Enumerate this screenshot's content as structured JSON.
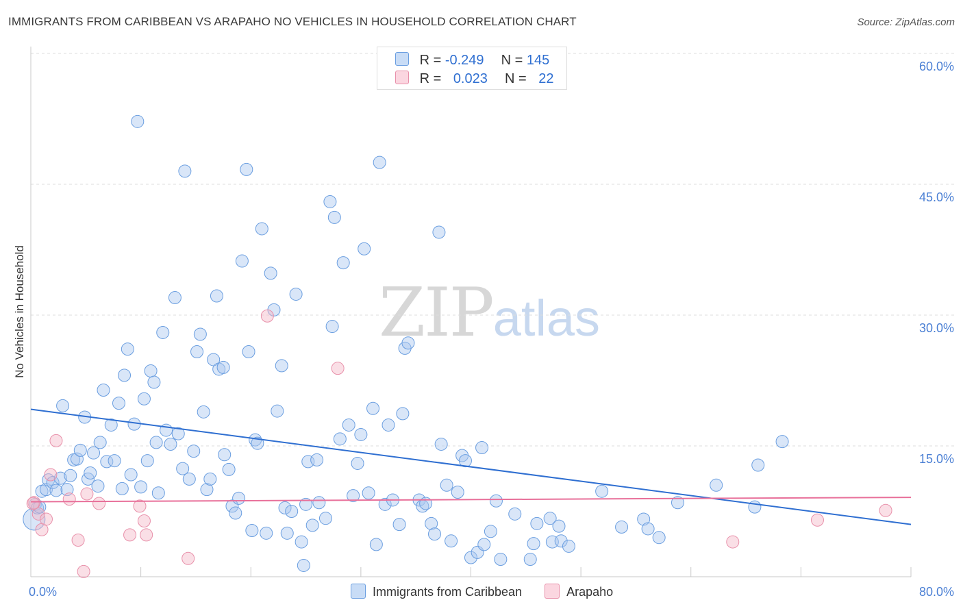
{
  "title": "IMMIGRANTS FROM CARIBBEAN VS ARAPAHO NO VEHICLES IN HOUSEHOLD CORRELATION CHART",
  "source": "Source: ZipAtlas.com",
  "watermark": {
    "zip": "ZIP",
    "atlas": "atlas"
  },
  "legend": {
    "rows": [
      {
        "r_label": "R =",
        "r_value": "-0.249",
        "n_label": "N =",
        "n_value": "145",
        "color": "#aac8f0"
      },
      {
        "r_label": "R =",
        "r_value": "0.023",
        "n_label": "N =",
        "n_value": "22",
        "color": "#f5b8c8"
      }
    ]
  },
  "bottom_legend": [
    {
      "label": "Immigrants from Caribbean",
      "color": "#aac8f0"
    },
    {
      "label": "Arapaho",
      "color": "#f5b8c8"
    }
  ],
  "chart_data": {
    "type": "scatter",
    "title": "IMMIGRANTS FROM CARIBBEAN VS ARAPAHO NO VEHICLES IN HOUSEHOLD CORRELATION CHART",
    "xlabel": "",
    "ylabel": "No Vehicles in Household",
    "xlim": [
      0,
      80
    ],
    "ylim": [
      0,
      60
    ],
    "x_tick_labels": [
      "0.0%",
      "80.0%"
    ],
    "y_ticks": [
      15,
      30,
      45,
      60
    ],
    "y_tick_labels": [
      "15.0%",
      "30.0%",
      "45.0%",
      "60.0%"
    ],
    "grid": "horizontal dashed",
    "series": [
      {
        "name": "Immigrants from Caribbean",
        "color": "#aac8f0",
        "edge": "#6a9ee0",
        "trend": {
          "x": [
            0,
            80
          ],
          "y": [
            19.2,
            6.0
          ],
          "color": "#2f6fd1"
        },
        "points": [
          [
            0.3,
            6.6
          ],
          [
            0.4,
            8.3
          ],
          [
            0.6,
            7.9
          ],
          [
            0.8,
            8.0
          ],
          [
            1.0,
            9.8
          ],
          [
            1.4,
            10.0
          ],
          [
            1.6,
            11.1
          ],
          [
            2.0,
            10.8
          ],
          [
            2.3,
            9.9
          ],
          [
            2.7,
            11.3
          ],
          [
            2.9,
            19.6
          ],
          [
            3.3,
            10.0
          ],
          [
            3.6,
            11.6
          ],
          [
            3.9,
            13.4
          ],
          [
            4.2,
            13.5
          ],
          [
            4.5,
            14.5
          ],
          [
            4.9,
            18.3
          ],
          [
            5.2,
            11.2
          ],
          [
            5.4,
            11.9
          ],
          [
            5.7,
            14.2
          ],
          [
            6.1,
            10.4
          ],
          [
            6.3,
            15.4
          ],
          [
            6.6,
            21.4
          ],
          [
            6.9,
            13.2
          ],
          [
            7.3,
            17.4
          ],
          [
            7.6,
            13.3
          ],
          [
            8.0,
            19.9
          ],
          [
            8.3,
            10.1
          ],
          [
            8.5,
            23.1
          ],
          [
            8.8,
            26.1
          ],
          [
            9.1,
            11.7
          ],
          [
            9.4,
            17.5
          ],
          [
            9.7,
            52.2
          ],
          [
            10.0,
            10.3
          ],
          [
            10.3,
            20.4
          ],
          [
            10.6,
            13.3
          ],
          [
            10.9,
            23.6
          ],
          [
            11.2,
            22.3
          ],
          [
            11.4,
            15.4
          ],
          [
            11.6,
            9.6
          ],
          [
            12.0,
            28.0
          ],
          [
            12.3,
            16.8
          ],
          [
            12.7,
            15.2
          ],
          [
            13.1,
            32.0
          ],
          [
            13.4,
            16.4
          ],
          [
            13.8,
            12.4
          ],
          [
            14.0,
            46.5
          ],
          [
            14.4,
            11.2
          ],
          [
            14.8,
            14.4
          ],
          [
            15.1,
            25.8
          ],
          [
            15.4,
            27.8
          ],
          [
            15.7,
            18.9
          ],
          [
            16.0,
            10.0
          ],
          [
            16.3,
            11.2
          ],
          [
            16.6,
            24.9
          ],
          [
            16.9,
            32.2
          ],
          [
            17.1,
            23.8
          ],
          [
            17.5,
            24.0
          ],
          [
            17.6,
            14.0
          ],
          [
            18.0,
            12.3
          ],
          [
            18.3,
            8.1
          ],
          [
            18.6,
            7.3
          ],
          [
            18.9,
            9.0
          ],
          [
            19.2,
            36.2
          ],
          [
            19.6,
            46.7
          ],
          [
            19.8,
            25.8
          ],
          [
            20.1,
            5.3
          ],
          [
            20.4,
            15.7
          ],
          [
            20.6,
            15.3
          ],
          [
            21.0,
            39.9
          ],
          [
            21.4,
            5.0
          ],
          [
            21.8,
            34.8
          ],
          [
            22.1,
            30.6
          ],
          [
            22.4,
            19.0
          ],
          [
            22.8,
            24.2
          ],
          [
            23.1,
            7.9
          ],
          [
            23.3,
            5.0
          ],
          [
            23.7,
            7.5
          ],
          [
            24.1,
            32.4
          ],
          [
            24.6,
            4.0
          ],
          [
            25.0,
            8.3
          ],
          [
            25.2,
            13.2
          ],
          [
            25.6,
            5.9
          ],
          [
            26.0,
            13.4
          ],
          [
            26.2,
            8.5
          ],
          [
            26.8,
            6.7
          ],
          [
            27.2,
            43.0
          ],
          [
            27.4,
            28.7
          ],
          [
            27.6,
            41.2
          ],
          [
            28.1,
            15.8
          ],
          [
            28.4,
            36.0
          ],
          [
            28.9,
            17.4
          ],
          [
            29.3,
            9.3
          ],
          [
            29.7,
            13.0
          ],
          [
            30.0,
            16.3
          ],
          [
            30.3,
            37.6
          ],
          [
            30.7,
            9.6
          ],
          [
            31.1,
            19.3
          ],
          [
            31.4,
            3.7
          ],
          [
            31.7,
            47.5
          ],
          [
            32.2,
            8.3
          ],
          [
            32.5,
            17.4
          ],
          [
            32.9,
            8.8
          ],
          [
            33.5,
            6.0
          ],
          [
            33.8,
            18.7
          ],
          [
            34.0,
            26.2
          ],
          [
            34.3,
            26.8
          ],
          [
            35.3,
            8.8
          ],
          [
            35.6,
            8.1
          ],
          [
            35.9,
            8.4
          ],
          [
            36.4,
            6.1
          ],
          [
            36.7,
            4.9
          ],
          [
            37.1,
            39.5
          ],
          [
            37.3,
            15.2
          ],
          [
            37.8,
            10.5
          ],
          [
            38.2,
            4.1
          ],
          [
            38.8,
            9.7
          ],
          [
            39.2,
            13.9
          ],
          [
            39.5,
            13.3
          ],
          [
            40.0,
            2.2
          ],
          [
            40.6,
            2.8
          ],
          [
            41.0,
            14.8
          ],
          [
            41.2,
            3.7
          ],
          [
            41.8,
            5.2
          ],
          [
            42.3,
            8.7
          ],
          [
            42.7,
            2.0
          ],
          [
            44.0,
            7.2
          ],
          [
            45.4,
            2.0
          ],
          [
            45.7,
            3.8
          ],
          [
            46.0,
            6.1
          ],
          [
            47.2,
            6.7
          ],
          [
            47.4,
            4.0
          ],
          [
            48.0,
            5.8
          ],
          [
            48.2,
            4.1
          ],
          [
            48.9,
            3.5
          ],
          [
            51.9,
            9.8
          ],
          [
            53.7,
            5.7
          ],
          [
            55.7,
            6.6
          ],
          [
            56.1,
            5.5
          ],
          [
            57.1,
            4.5
          ],
          [
            58.8,
            8.5
          ],
          [
            62.3,
            10.5
          ],
          [
            65.8,
            8.0
          ],
          [
            66.1,
            12.8
          ],
          [
            68.3,
            15.5
          ],
          [
            24.8,
            1.3
          ]
        ]
      },
      {
        "name": "Arapaho",
        "color": "#f5b8c8",
        "edge": "#e890aa",
        "trend": {
          "x": [
            0,
            80
          ],
          "y": [
            8.6,
            9.1
          ],
          "color": "#e8709a"
        },
        "points": [
          [
            0.3,
            8.5
          ],
          [
            0.7,
            7.2
          ],
          [
            1.0,
            5.4
          ],
          [
            1.4,
            6.6
          ],
          [
            1.8,
            11.7
          ],
          [
            2.3,
            15.6
          ],
          [
            3.5,
            8.9
          ],
          [
            4.3,
            4.2
          ],
          [
            4.8,
            0.6
          ],
          [
            5.1,
            9.5
          ],
          [
            6.2,
            8.4
          ],
          [
            9.0,
            4.8
          ],
          [
            9.9,
            8.1
          ],
          [
            10.3,
            6.4
          ],
          [
            10.5,
            4.8
          ],
          [
            14.3,
            2.1
          ],
          [
            21.5,
            29.9
          ],
          [
            27.9,
            23.9
          ],
          [
            63.8,
            4.0
          ],
          [
            71.5,
            6.5
          ],
          [
            77.7,
            7.6
          ],
          [
            0.2,
            8.4
          ]
        ]
      }
    ]
  }
}
